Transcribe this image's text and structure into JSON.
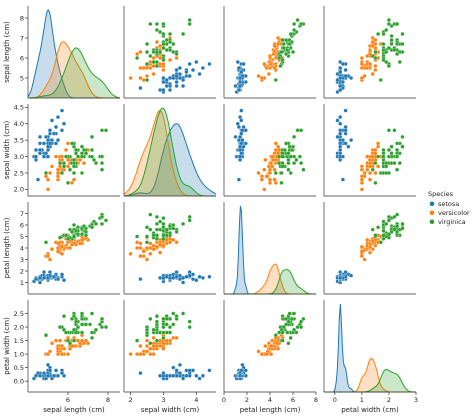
{
  "chart_data": {
    "type": "scatter",
    "kind": "pairplot",
    "variables": [
      "sepal length (cm)",
      "sepal width (cm)",
      "petal length (cm)",
      "petal width (cm)"
    ],
    "axis_labels": {
      "x": [
        "sepal length (cm)",
        "sepal width (cm)",
        "petal length (cm)",
        "petal width (cm)"
      ],
      "y": [
        "sepal length (cm)",
        "sepal width (cm)",
        "petal length (cm)",
        "petal width (cm)"
      ]
    },
    "ranges": [
      [
        4,
        8.6
      ],
      [
        1.8,
        4.6
      ],
      [
        0,
        8
      ],
      [
        -0.4,
        3
      ]
    ],
    "ticks": [
      [
        5,
        6,
        7,
        8
      ],
      [
        2.0,
        2.5,
        3.0,
        3.5,
        4.0,
        4.5
      ],
      [
        0,
        2,
        4,
        6,
        8
      ],
      [
        0,
        1,
        2,
        3
      ]
    ],
    "tick_labels_y": [
      [
        "5",
        "6",
        "7",
        "8"
      ],
      [
        "2.0",
        "2.5",
        "3.0",
        "3.5",
        "4.0",
        "4.5"
      ],
      [
        "1",
        "2",
        "3",
        "4",
        "5",
        "6",
        "7"
      ],
      [
        "0.0",
        "0.5",
        "1.0",
        "1.5",
        "2.0",
        "2.5"
      ]
    ],
    "tick_values_y": [
      [
        5,
        6,
        7,
        8
      ],
      [
        2.0,
        2.5,
        3.0,
        3.5,
        4.0,
        4.5
      ],
      [
        1,
        2,
        3,
        4,
        5,
        6,
        7
      ],
      [
        0.0,
        0.5,
        1.0,
        1.5,
        2.0,
        2.5
      ]
    ],
    "tick_labels_x": [
      [
        "6",
        "8"
      ],
      [
        "2",
        "3",
        "4"
      ],
      [
        "0",
        "2",
        "4",
        "6",
        "8"
      ],
      [
        "0",
        "1",
        "2",
        "3"
      ]
    ],
    "tick_values_x": [
      [
        6,
        8
      ],
      [
        2,
        3,
        4
      ],
      [
        0,
        2,
        4,
        6,
        8
      ],
      [
        0,
        1,
        2,
        3
      ]
    ],
    "diagonal": "kde",
    "legend": {
      "title": "Species",
      "placement": "right"
    },
    "series": [
      {
        "name": "setosa",
        "color": "#1f77b4",
        "points": [
          [
            5.1,
            3.5,
            1.4,
            0.2
          ],
          [
            4.9,
            3.0,
            1.4,
            0.2
          ],
          [
            4.7,
            3.2,
            1.3,
            0.2
          ],
          [
            4.6,
            3.1,
            1.5,
            0.2
          ],
          [
            5.0,
            3.6,
            1.4,
            0.2
          ],
          [
            5.4,
            3.9,
            1.7,
            0.4
          ],
          [
            4.6,
            3.4,
            1.4,
            0.3
          ],
          [
            5.0,
            3.4,
            1.5,
            0.2
          ],
          [
            4.4,
            2.9,
            1.4,
            0.2
          ],
          [
            4.9,
            3.1,
            1.5,
            0.1
          ],
          [
            5.4,
            3.7,
            1.5,
            0.2
          ],
          [
            4.8,
            3.4,
            1.6,
            0.2
          ],
          [
            4.8,
            3.0,
            1.4,
            0.1
          ],
          [
            4.3,
            3.0,
            1.1,
            0.1
          ],
          [
            5.8,
            4.0,
            1.2,
            0.2
          ],
          [
            5.7,
            4.4,
            1.5,
            0.4
          ],
          [
            5.4,
            3.9,
            1.3,
            0.4
          ],
          [
            5.1,
            3.5,
            1.4,
            0.3
          ],
          [
            5.7,
            3.8,
            1.7,
            0.3
          ],
          [
            5.1,
            3.8,
            1.5,
            0.3
          ],
          [
            5.4,
            3.4,
            1.7,
            0.2
          ],
          [
            5.1,
            3.7,
            1.5,
            0.4
          ],
          [
            4.6,
            3.6,
            1.0,
            0.2
          ],
          [
            5.1,
            3.3,
            1.7,
            0.5
          ],
          [
            4.8,
            3.4,
            1.9,
            0.2
          ],
          [
            5.0,
            3.0,
            1.6,
            0.2
          ],
          [
            5.0,
            3.4,
            1.6,
            0.4
          ],
          [
            5.2,
            3.5,
            1.5,
            0.2
          ],
          [
            5.2,
            3.4,
            1.4,
            0.2
          ],
          [
            4.7,
            3.2,
            1.6,
            0.2
          ],
          [
            4.8,
            3.1,
            1.6,
            0.2
          ],
          [
            5.4,
            3.4,
            1.5,
            0.4
          ],
          [
            5.2,
            4.1,
            1.5,
            0.1
          ],
          [
            5.5,
            4.2,
            1.4,
            0.2
          ],
          [
            4.9,
            3.1,
            1.5,
            0.2
          ],
          [
            5.0,
            3.2,
            1.2,
            0.2
          ],
          [
            5.5,
            3.5,
            1.3,
            0.2
          ],
          [
            4.9,
            3.6,
            1.4,
            0.1
          ],
          [
            4.4,
            3.0,
            1.3,
            0.2
          ],
          [
            5.1,
            3.4,
            1.5,
            0.2
          ],
          [
            5.0,
            3.5,
            1.3,
            0.3
          ],
          [
            4.5,
            2.3,
            1.3,
            0.3
          ],
          [
            4.4,
            3.2,
            1.3,
            0.2
          ],
          [
            5.0,
            3.5,
            1.6,
            0.6
          ],
          [
            5.1,
            3.8,
            1.9,
            0.4
          ],
          [
            4.8,
            3.0,
            1.4,
            0.3
          ],
          [
            5.1,
            3.8,
            1.6,
            0.2
          ],
          [
            4.6,
            3.2,
            1.4,
            0.2
          ],
          [
            5.3,
            3.7,
            1.5,
            0.2
          ],
          [
            5.0,
            3.3,
            1.4,
            0.2
          ]
        ]
      },
      {
        "name": "versicolor",
        "color": "#ff7f0e",
        "points": [
          [
            7.0,
            3.2,
            4.7,
            1.4
          ],
          [
            6.4,
            3.2,
            4.5,
            1.5
          ],
          [
            6.9,
            3.1,
            4.9,
            1.5
          ],
          [
            5.5,
            2.3,
            4.0,
            1.3
          ],
          [
            6.5,
            2.8,
            4.6,
            1.5
          ],
          [
            5.7,
            2.8,
            4.5,
            1.3
          ],
          [
            6.3,
            3.3,
            4.7,
            1.6
          ],
          [
            4.9,
            2.4,
            3.3,
            1.0
          ],
          [
            6.6,
            2.9,
            4.6,
            1.3
          ],
          [
            5.2,
            2.7,
            3.9,
            1.4
          ],
          [
            5.0,
            2.0,
            3.5,
            1.0
          ],
          [
            5.9,
            3.0,
            4.2,
            1.5
          ],
          [
            6.0,
            2.2,
            4.0,
            1.0
          ],
          [
            6.1,
            2.9,
            4.7,
            1.4
          ],
          [
            5.6,
            2.9,
            3.6,
            1.3
          ],
          [
            6.7,
            3.1,
            4.4,
            1.4
          ],
          [
            5.6,
            3.0,
            4.5,
            1.5
          ],
          [
            5.8,
            2.7,
            4.1,
            1.0
          ],
          [
            6.2,
            2.2,
            4.5,
            1.5
          ],
          [
            5.6,
            2.5,
            3.9,
            1.1
          ],
          [
            5.9,
            3.2,
            4.8,
            1.8
          ],
          [
            6.1,
            2.8,
            4.0,
            1.3
          ],
          [
            6.3,
            2.5,
            4.9,
            1.5
          ],
          [
            6.1,
            2.8,
            4.7,
            1.2
          ],
          [
            6.4,
            2.9,
            4.3,
            1.3
          ],
          [
            6.6,
            3.0,
            4.4,
            1.4
          ],
          [
            6.8,
            2.8,
            4.8,
            1.4
          ],
          [
            6.7,
            3.0,
            5.0,
            1.7
          ],
          [
            6.0,
            2.9,
            4.5,
            1.5
          ],
          [
            5.7,
            2.6,
            3.5,
            1.0
          ],
          [
            5.5,
            2.4,
            3.8,
            1.1
          ],
          [
            5.5,
            2.4,
            3.7,
            1.0
          ],
          [
            5.8,
            2.7,
            3.9,
            1.2
          ],
          [
            6.0,
            2.7,
            5.1,
            1.6
          ],
          [
            5.4,
            3.0,
            4.5,
            1.5
          ],
          [
            6.0,
            3.4,
            4.5,
            1.6
          ],
          [
            6.7,
            3.1,
            4.7,
            1.5
          ],
          [
            6.3,
            2.3,
            4.4,
            1.3
          ],
          [
            5.6,
            3.0,
            4.1,
            1.3
          ],
          [
            5.5,
            2.5,
            4.0,
            1.3
          ],
          [
            5.5,
            2.6,
            4.4,
            1.2
          ],
          [
            6.1,
            3.0,
            4.6,
            1.4
          ],
          [
            5.8,
            2.6,
            4.0,
            1.2
          ],
          [
            5.0,
            2.3,
            3.3,
            1.0
          ],
          [
            5.6,
            2.7,
            4.2,
            1.3
          ],
          [
            5.7,
            3.0,
            4.2,
            1.2
          ],
          [
            5.7,
            2.9,
            4.2,
            1.3
          ],
          [
            6.2,
            2.9,
            4.3,
            1.3
          ],
          [
            5.1,
            2.5,
            3.0,
            1.1
          ],
          [
            5.7,
            2.8,
            4.1,
            1.3
          ]
        ]
      },
      {
        "name": "virginica",
        "color": "#2ca02c",
        "points": [
          [
            6.3,
            3.3,
            6.0,
            2.5
          ],
          [
            5.8,
            2.7,
            5.1,
            1.9
          ],
          [
            7.1,
            3.0,
            5.9,
            2.1
          ],
          [
            6.3,
            2.9,
            5.6,
            1.8
          ],
          [
            6.5,
            3.0,
            5.8,
            2.2
          ],
          [
            7.6,
            3.0,
            6.6,
            2.1
          ],
          [
            4.9,
            2.5,
            4.5,
            1.7
          ],
          [
            7.3,
            2.9,
            6.3,
            1.8
          ],
          [
            6.7,
            2.5,
            5.8,
            1.8
          ],
          [
            7.2,
            3.6,
            6.1,
            2.5
          ],
          [
            6.5,
            3.2,
            5.1,
            2.0
          ],
          [
            6.4,
            2.7,
            5.3,
            1.9
          ],
          [
            6.8,
            3.0,
            5.5,
            2.1
          ],
          [
            5.7,
            2.5,
            5.0,
            2.0
          ],
          [
            5.8,
            2.8,
            5.1,
            2.4
          ],
          [
            6.4,
            3.2,
            5.3,
            2.3
          ],
          [
            6.5,
            3.0,
            5.5,
            1.8
          ],
          [
            7.7,
            3.8,
            6.7,
            2.2
          ],
          [
            7.7,
            2.6,
            6.9,
            2.3
          ],
          [
            6.0,
            2.2,
            5.0,
            1.5
          ],
          [
            6.9,
            3.2,
            5.7,
            2.3
          ],
          [
            5.6,
            2.8,
            4.9,
            2.0
          ],
          [
            7.7,
            2.8,
            6.7,
            2.0
          ],
          [
            6.3,
            2.7,
            4.9,
            1.8
          ],
          [
            6.7,
            3.3,
            5.7,
            2.1
          ],
          [
            7.2,
            3.2,
            6.0,
            1.8
          ],
          [
            6.2,
            2.8,
            4.8,
            1.8
          ],
          [
            6.1,
            3.0,
            4.9,
            1.8
          ],
          [
            6.4,
            2.8,
            5.6,
            2.1
          ],
          [
            7.2,
            3.0,
            5.8,
            1.6
          ],
          [
            7.4,
            2.8,
            6.1,
            1.9
          ],
          [
            7.9,
            3.8,
            6.4,
            2.0
          ],
          [
            6.4,
            2.8,
            5.6,
            2.2
          ],
          [
            6.3,
            2.8,
            5.1,
            1.5
          ],
          [
            6.1,
            2.6,
            5.6,
            1.4
          ],
          [
            7.7,
            3.0,
            6.1,
            2.3
          ],
          [
            6.3,
            3.4,
            5.6,
            2.4
          ],
          [
            6.4,
            3.1,
            5.5,
            1.8
          ],
          [
            6.0,
            3.0,
            4.8,
            1.8
          ],
          [
            6.9,
            3.1,
            5.4,
            2.1
          ],
          [
            6.7,
            3.1,
            5.6,
            2.4
          ],
          [
            6.9,
            3.1,
            5.1,
            2.3
          ],
          [
            5.8,
            2.7,
            5.1,
            1.9
          ],
          [
            6.8,
            3.2,
            5.9,
            2.3
          ],
          [
            6.7,
            3.3,
            5.7,
            2.5
          ],
          [
            6.7,
            3.0,
            5.2,
            2.3
          ],
          [
            6.3,
            2.5,
            5.0,
            1.9
          ],
          [
            6.5,
            3.0,
            5.2,
            2.0
          ],
          [
            6.2,
            3.4,
            5.4,
            2.3
          ],
          [
            5.9,
            3.0,
            5.1,
            1.8
          ]
        ]
      }
    ]
  }
}
